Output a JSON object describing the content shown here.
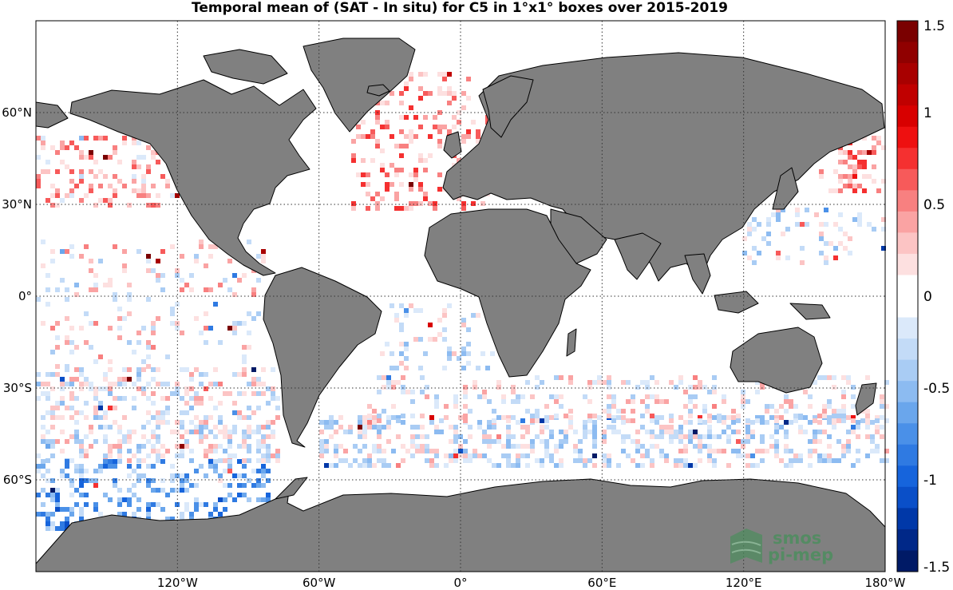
{
  "title": "Temporal mean of (SAT - In situ) for C5 in 1°x1° boxes over 2015-2019",
  "axes": {
    "lon_ticks": [
      {
        "value": -120,
        "label": "120°W"
      },
      {
        "value": -60,
        "label": "60°W"
      },
      {
        "value": 0,
        "label": "0°"
      },
      {
        "value": 60,
        "label": "60°E"
      },
      {
        "value": 120,
        "label": "120°E"
      },
      {
        "value": 180,
        "label": "180°W"
      }
    ],
    "lat_ticks": [
      {
        "value": 60,
        "label": "60°N"
      },
      {
        "value": 30,
        "label": "30°N"
      },
      {
        "value": 0,
        "label": "0°"
      },
      {
        "value": -30,
        "label": "30°S"
      },
      {
        "value": -60,
        "label": "60°S"
      }
    ],
    "lon_range": [
      -180,
      180
    ],
    "lat_range": [
      -90,
      90
    ],
    "grid": true,
    "grid_style": "dotted"
  },
  "colorbar": {
    "range": [
      -1.5,
      1.5
    ],
    "ticks": [
      {
        "value": 1.5,
        "label": "1.5"
      },
      {
        "value": 1,
        "label": "1"
      },
      {
        "value": 0.5,
        "label": "0.5"
      },
      {
        "value": 0,
        "label": "0"
      },
      {
        "value": -0.5,
        "label": "-0.5"
      },
      {
        "value": -1,
        "label": "-1"
      },
      {
        "value": -1.5,
        "label": "-1.5"
      }
    ],
    "colors_top_to_bottom": [
      "#7a0000",
      "#900000",
      "#a80000",
      "#c00000",
      "#d80000",
      "#ee1010",
      "#f53030",
      "#f75a5a",
      "#f88080",
      "#faa3a3",
      "#fcc4c4",
      "#fde0e0",
      "#ffffff",
      "#ffffff",
      "#dbe9fa",
      "#c3dbf7",
      "#a9ccf4",
      "#8cbbf1",
      "#6aa6ec",
      "#4a90e8",
      "#2f7ae2",
      "#1664dc",
      "#0a4fc8",
      "#0038a8",
      "#002888",
      "#001a66"
    ]
  },
  "colors": {
    "land": "#808080",
    "coast": "#000000",
    "ocean": "#ffffff"
  },
  "logo": {
    "line1": "smos",
    "line2": "pi-mep",
    "color": "#4a8e5c"
  }
}
